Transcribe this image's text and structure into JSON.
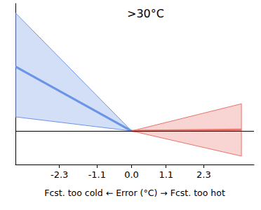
{
  "chart_data": {
    "type": "line",
    "title": ">30°C",
    "x_label": "Fcst. too cold ← Error (°C) → Fcst. too hot",
    "xlim": [
      -3.7,
      3.9
    ],
    "xticks": [
      -2.3,
      -1.1,
      {
        "value": 0,
        "label": "0.0"
      },
      1.1,
      2.3
    ],
    "ylim": [
      -1,
      3.8
    ],
    "tick_labels": "x",
    "grid": false,
    "reference_line": 0,
    "series": [
      {
        "color": "#6a94e6",
        "x": [
          -3.7,
          0
        ],
        "values": [
          1.92,
          0
        ],
        "lower": [
          0.42,
          0
        ],
        "upper": [
          3.52,
          0
        ]
      },
      {
        "color": "#e8736b",
        "x": [
          0,
          3.5
        ],
        "values": [
          0,
          0.04
        ],
        "lower": [
          0,
          -0.75
        ],
        "upper": [
          0,
          0.81
        ]
      }
    ]
  }
}
